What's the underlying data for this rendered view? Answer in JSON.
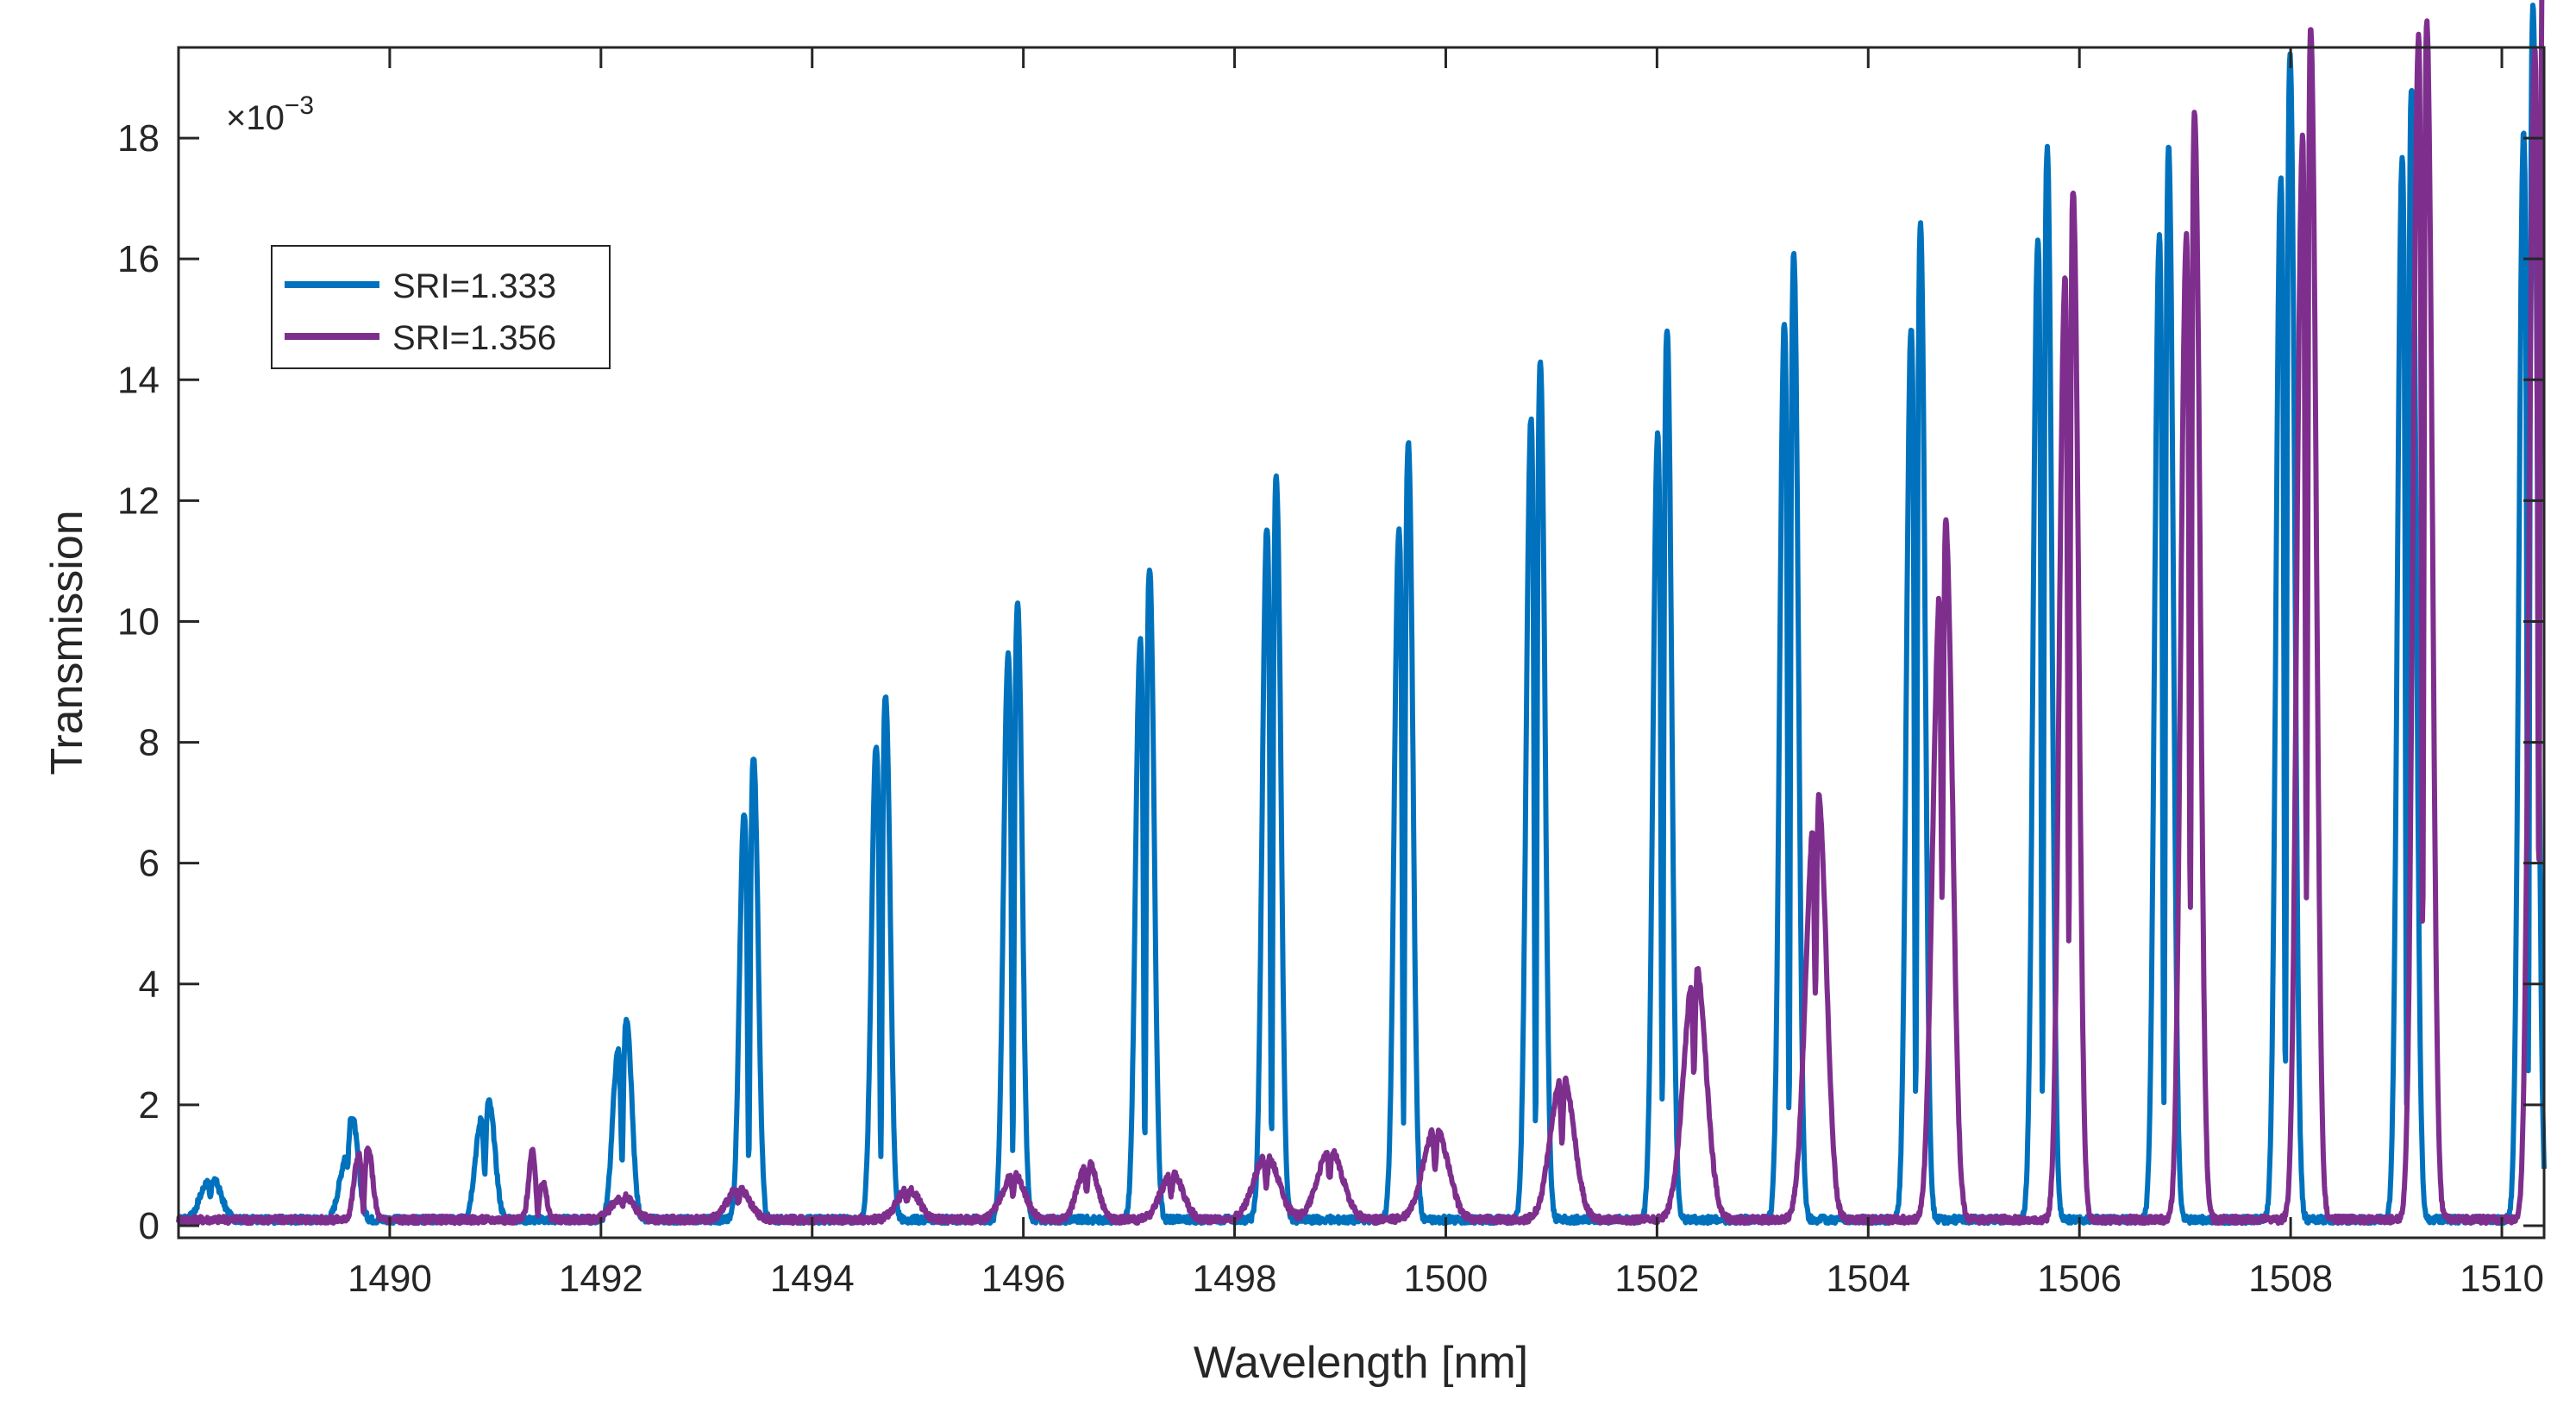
{
  "chart_data": {
    "type": "line",
    "title": "",
    "xlabel": "Wavelength [nm]",
    "ylabel": "Transmission",
    "y_exponent_label": "×10",
    "y_exponent_power": "−3",
    "xlim": [
      1488,
      1510.4
    ],
    "ylim": [
      -0.2,
      19.5
    ],
    "x_ticks": [
      1490,
      1492,
      1494,
      1496,
      1498,
      1500,
      1502,
      1504,
      1506,
      1508,
      1510
    ],
    "y_ticks": [
      0,
      2,
      4,
      6,
      8,
      10,
      12,
      14,
      16,
      18
    ],
    "x_tick_labels": [
      "1490",
      "1492",
      "1494",
      "1496",
      "1498",
      "1500",
      "1502",
      "1504",
      "1506",
      "1508",
      "1510"
    ],
    "y_tick_labels": [
      "0",
      "2",
      "4",
      "6",
      "8",
      "10",
      "12",
      "14",
      "16",
      "18"
    ],
    "grid": false,
    "legend_position": "upper-left",
    "series": [
      {
        "name": "SRI=1.333",
        "color": "#0072BD",
        "baseline": 0.1,
        "peaks": [
          {
            "center": 1488.3,
            "a1": 0.4,
            "a2": 0.5,
            "width": 0.12
          },
          {
            "center": 1489.6,
            "a1": 0.6,
            "a2": 1.6,
            "width": 0.09
          },
          {
            "center": 1490.9,
            "a1": 1.3,
            "a2": 1.7,
            "width": 0.09
          },
          {
            "center": 1492.2,
            "a1": 2.4,
            "a2": 3.0,
            "width": 0.08
          },
          {
            "center": 1493.4,
            "a1": 6.3,
            "a2": 7.3,
            "width": 0.07
          },
          {
            "center": 1494.65,
            "a1": 7.4,
            "a2": 8.3,
            "width": 0.07
          },
          {
            "center": 1495.9,
            "a1": 8.8,
            "a2": 9.7,
            "width": 0.07
          },
          {
            "center": 1497.15,
            "a1": 9.0,
            "a2": 10.3,
            "width": 0.07
          },
          {
            "center": 1498.35,
            "a1": 10.8,
            "a2": 11.7,
            "width": 0.07
          },
          {
            "center": 1499.6,
            "a1": 10.7,
            "a2": 12.3,
            "width": 0.07
          },
          {
            "center": 1500.85,
            "a1": 12.5,
            "a2": 13.5,
            "width": 0.07
          },
          {
            "center": 1502.05,
            "a1": 12.2,
            "a2": 14.1,
            "width": 0.07
          },
          {
            "center": 1503.25,
            "a1": 14.0,
            "a2": 15.2,
            "width": 0.07
          },
          {
            "center": 1504.45,
            "a1": 13.9,
            "a2": 15.7,
            "width": 0.07
          },
          {
            "center": 1505.65,
            "a1": 15.3,
            "a2": 16.9,
            "width": 0.07
          },
          {
            "center": 1506.8,
            "a1": 15.3,
            "a2": 16.9,
            "width": 0.07
          },
          {
            "center": 1507.95,
            "a1": 16.2,
            "a2": 18.4,
            "width": 0.07
          },
          {
            "center": 1509.1,
            "a1": 16.6,
            "a2": 17.8,
            "width": 0.07
          },
          {
            "center": 1510.25,
            "a1": 16.9,
            "a2": 19.2,
            "width": 0.07
          }
        ]
      },
      {
        "name": "SRI=1.356",
        "color": "#7E2F8E",
        "baseline": 0.1,
        "peaks": [
          {
            "center": 1489.75,
            "a1": 1.0,
            "a2": 1.1,
            "width": 0.07
          },
          {
            "center": 1491.4,
            "a1": 1.1,
            "a2": 0.6,
            "width": 0.06
          },
          {
            "center": 1492.2,
            "a1": 0.2,
            "a2": 0.25,
            "width": 0.15
          },
          {
            "center": 1493.3,
            "a1": 0.3,
            "a2": 0.3,
            "width": 0.15
          },
          {
            "center": 1494.9,
            "a1": 0.25,
            "a2": 0.35,
            "width": 0.15
          },
          {
            "center": 1495.9,
            "a1": 0.4,
            "a2": 0.5,
            "width": 0.15
          },
          {
            "center": 1496.6,
            "a1": 0.5,
            "a2": 0.7,
            "width": 0.12
          },
          {
            "center": 1497.4,
            "a1": 0.4,
            "a2": 0.5,
            "width": 0.15
          },
          {
            "center": 1498.3,
            "a1": 0.6,
            "a2": 0.6,
            "width": 0.18
          },
          {
            "center": 1498.9,
            "a1": 0.6,
            "a2": 0.7,
            "width": 0.18
          },
          {
            "center": 1499.9,
            "a1": 0.8,
            "a2": 0.9,
            "width": 0.18
          },
          {
            "center": 1501.1,
            "a1": 1.3,
            "a2": 1.5,
            "width": 0.16
          },
          {
            "center": 1502.35,
            "a1": 2.1,
            "a2": 2.9,
            "width": 0.15
          },
          {
            "center": 1503.5,
            "a1": 4.0,
            "a2": 5.3,
            "width": 0.12
          },
          {
            "center": 1504.7,
            "a1": 7.3,
            "a2": 9.5,
            "width": 0.1
          },
          {
            "center": 1505.9,
            "a1": 13.6,
            "a2": 15.4,
            "width": 0.08
          },
          {
            "center": 1507.05,
            "a1": 14.1,
            "a2": 16.6,
            "width": 0.08
          },
          {
            "center": 1508.15,
            "a1": 15.6,
            "a2": 17.8,
            "width": 0.08
          },
          {
            "center": 1509.25,
            "a1": 17.4,
            "a2": 17.7,
            "width": 0.08
          },
          {
            "center": 1510.35,
            "a1": 16.9,
            "a2": 19.2,
            "width": 0.08
          }
        ]
      }
    ]
  }
}
